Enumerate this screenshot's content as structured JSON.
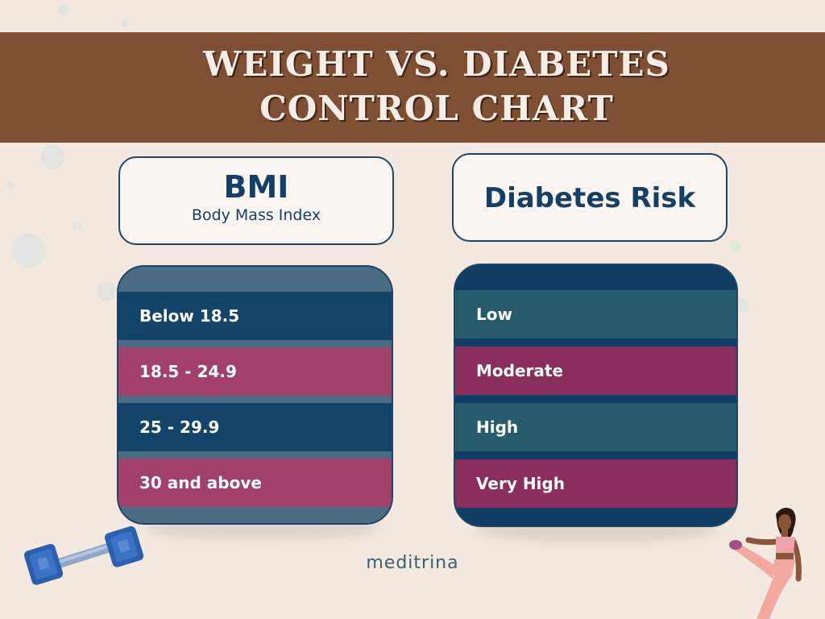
{
  "title": {
    "line1": "WEIGHT VS. DIABETES",
    "line2": "CONTROL CHART"
  },
  "bmi_header": {
    "title": "BMI",
    "subtitle": "Body Mass Index"
  },
  "risk_header": {
    "title": "Diabetes Risk"
  },
  "bmi_rows": [
    "Below 18.5",
    "18.5 - 24.9",
    "25 - 29.9",
    "30 and above"
  ],
  "risk_rows": [
    "Low",
    "Moderate",
    "High",
    "Very High"
  ],
  "brand": "meditrina",
  "colors": {
    "banner": "#7f4f34",
    "background": "#f3e9e1",
    "navy": "#124469",
    "plum_bmi": "#a1416b",
    "teal_risk": "#255b6b",
    "plum_risk": "#8a2f5c"
  },
  "icons": [
    "dumbbell-icon",
    "stretching-woman-illustration"
  ]
}
